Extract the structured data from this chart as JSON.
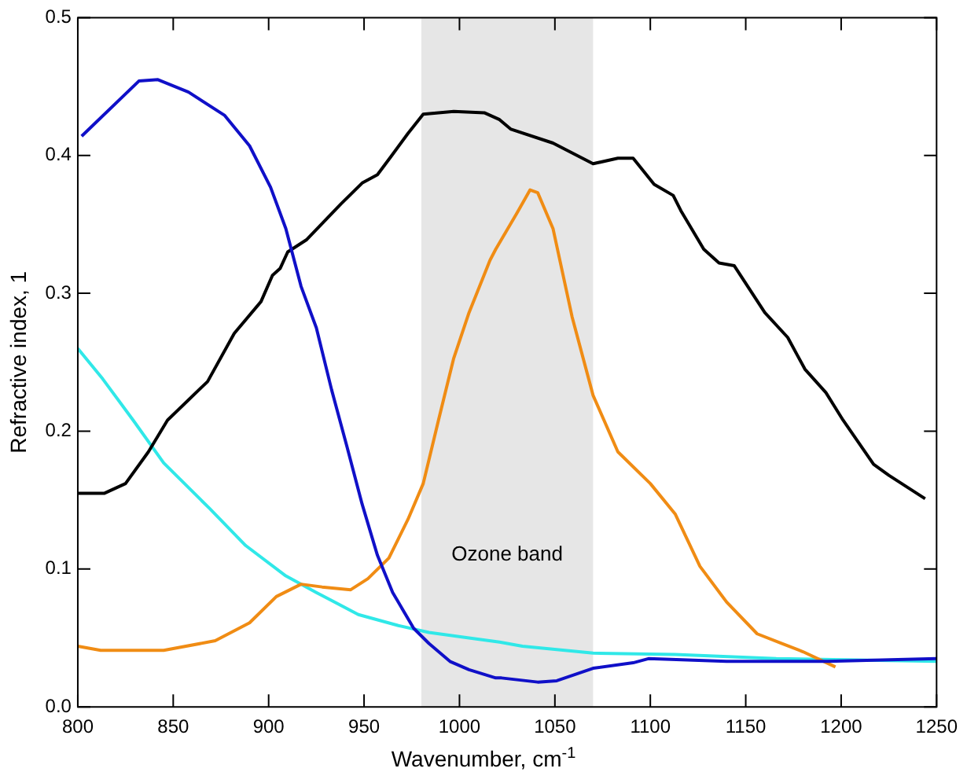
{
  "chart_data": {
    "type": "line",
    "xlabel": "Wavenumber, cm$^{-1}$",
    "ylabel": "Refractive index, 1",
    "xlim": [
      800,
      1250
    ],
    "xticks": [
      800,
      850,
      900,
      950,
      1000,
      1050,
      1100,
      1150,
      1200,
      1250
    ],
    "ylim": [
      0,
      0.5
    ],
    "yticks": [
      {
        "value": 0,
        "label": "0.0"
      },
      0.1,
      0.2,
      0.3,
      0.4,
      0.5
    ],
    "grid": false,
    "legend": false,
    "marker": "none",
    "line_style": "solid",
    "bands": [
      {
        "axis": "x",
        "from": 980,
        "to": 1070,
        "label": "Ozone band",
        "color": "#e6e6e6"
      }
    ],
    "series": [
      {
        "color": "#1010c8",
        "x": [
          802,
          832,
          842,
          858,
          877,
          890,
          901,
          909,
          917,
          925,
          933,
          941,
          949,
          957,
          965,
          976,
          984,
          995,
          1005,
          1019,
          1022,
          1041,
          1051,
          1070,
          1091,
          1099,
          1140,
          1193,
          1250
        ],
        "values": [
          0.414,
          0.454,
          0.455,
          0.446,
          0.429,
          0.407,
          0.377,
          0.347,
          0.305,
          0.275,
          0.23,
          0.189,
          0.147,
          0.11,
          0.083,
          0.057,
          0.046,
          0.033,
          0.027,
          0.021,
          0.021,
          0.018,
          0.019,
          0.028,
          0.032,
          0.035,
          0.033,
          0.033,
          0.035
        ]
      },
      {
        "color": "#000000",
        "x": [
          800,
          814,
          825,
          837,
          847,
          868,
          882,
          896,
          902,
          906,
          910,
          920,
          938,
          949,
          957,
          964,
          973,
          981,
          997,
          1013,
          1021,
          1027,
          1049,
          1070,
          1083,
          1091,
          1102,
          1112,
          1116,
          1128,
          1136,
          1144,
          1160,
          1172,
          1181,
          1192,
          1201,
          1217,
          1225,
          1244
        ],
        "values": [
          0.155,
          0.155,
          0.162,
          0.185,
          0.208,
          0.236,
          0.271,
          0.294,
          0.313,
          0.318,
          0.33,
          0.339,
          0.365,
          0.38,
          0.386,
          0.399,
          0.416,
          0.43,
          0.432,
          0.431,
          0.426,
          0.419,
          0.409,
          0.394,
          0.398,
          0.398,
          0.379,
          0.371,
          0.36,
          0.332,
          0.322,
          0.32,
          0.286,
          0.268,
          0.245,
          0.228,
          0.208,
          0.176,
          0.168,
          0.151
        ]
      },
      {
        "color": "#f08c14",
        "x": [
          800,
          812,
          845,
          872,
          890,
          904,
          917,
          928,
          943,
          952,
          963,
          973,
          981,
          989,
          997,
          1005,
          1016,
          1019,
          1030,
          1037,
          1041,
          1049,
          1059,
          1070,
          1083,
          1100,
          1113,
          1126,
          1140,
          1156,
          1169,
          1180,
          1197
        ],
        "values": [
          0.044,
          0.041,
          0.041,
          0.048,
          0.061,
          0.08,
          0.089,
          0.087,
          0.085,
          0.093,
          0.108,
          0.136,
          0.162,
          0.208,
          0.253,
          0.286,
          0.324,
          0.332,
          0.358,
          0.375,
          0.373,
          0.347,
          0.283,
          0.226,
          0.185,
          0.162,
          0.14,
          0.102,
          0.076,
          0.053,
          0.046,
          0.04,
          0.029
        ]
      },
      {
        "color": "#30e8e8",
        "x": [
          800,
          813,
          829,
          845,
          869,
          888,
          909,
          925,
          947,
          968,
          984,
          1005,
          1021,
          1033,
          1070,
          1113,
          1166,
          1250
        ],
        "values": [
          0.26,
          0.238,
          0.208,
          0.177,
          0.144,
          0.117,
          0.095,
          0.083,
          0.067,
          0.059,
          0.054,
          0.05,
          0.047,
          0.044,
          0.039,
          0.038,
          0.035,
          0.033
        ]
      }
    ]
  }
}
